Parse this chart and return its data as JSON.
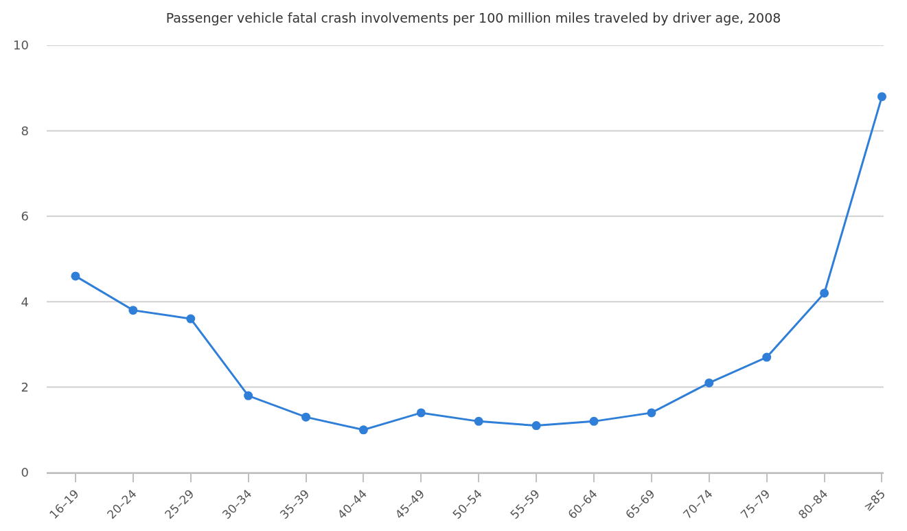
{
  "chart_data": {
    "type": "line",
    "title": "Passenger vehicle fatal crash involvements per 100 million miles traveled by driver age, 2008",
    "categories": [
      "16–19",
      "20–24",
      "25–29",
      "30–34",
      "35–39",
      "40–44",
      "45–49",
      "50–54",
      "55–59",
      "60–64",
      "65–69",
      "70–74",
      "75–79",
      "80–84",
      "≥85"
    ],
    "series": [
      {
        "color": "#2f7ed8",
        "values": [
          4.6,
          3.8,
          3.6,
          1.8,
          1.3,
          1.0,
          1.4,
          1.2,
          1.1,
          1.2,
          1.4,
          2.1,
          2.7,
          4.2,
          8.8
        ]
      }
    ],
    "ylim": [
      0,
      10
    ],
    "yticks": [
      0,
      2,
      4,
      6,
      8,
      10
    ],
    "grid": "y",
    "legend": false,
    "marker": "circle",
    "line_style": "solid"
  }
}
